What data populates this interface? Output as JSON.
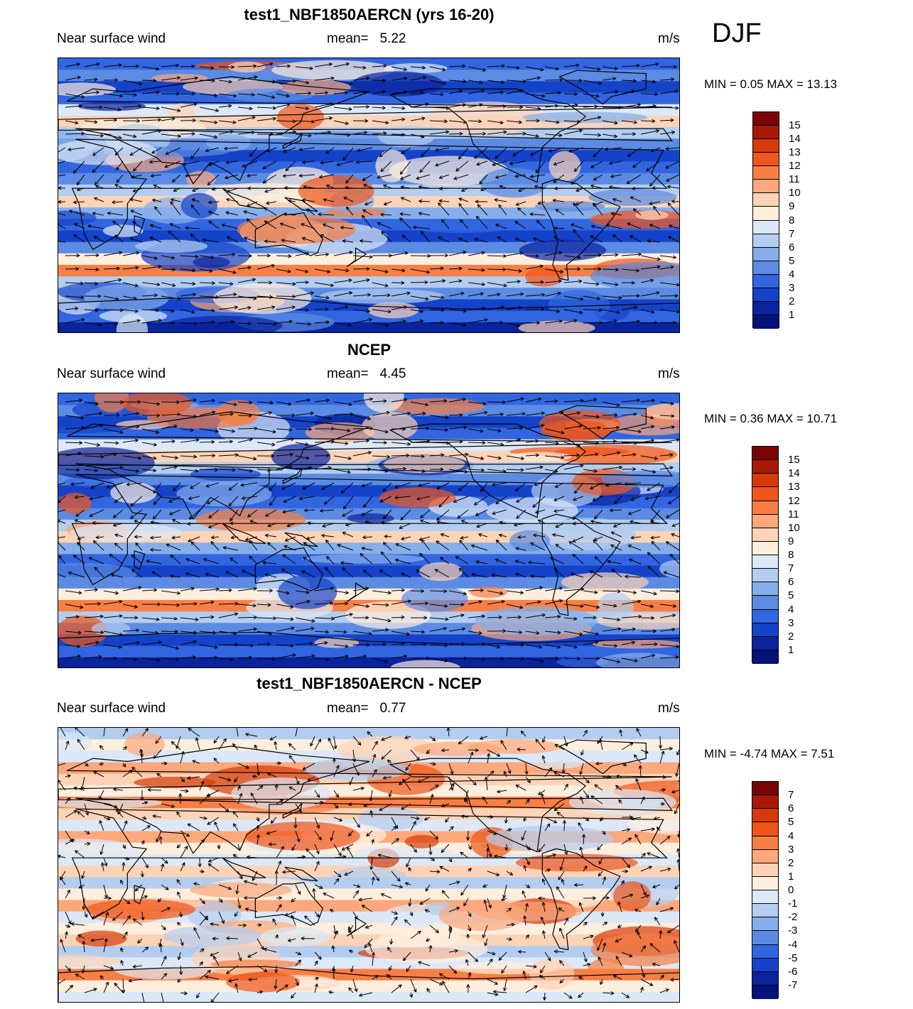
{
  "season": "DJF",
  "units": "m/s",
  "field_label": "Near surface wind",
  "mean_prefix": "mean=",
  "panels": [
    {
      "title": "test1_NBF1850AERCN (yrs 16-20)",
      "mean": "5.22",
      "minmax": "MIN =   0.05 MAX =  13.13",
      "palette": "speed",
      "colorbar_labels": [
        "15",
        "14",
        "13",
        "12",
        "11",
        "10",
        "9",
        "8",
        "7",
        "6",
        "5",
        "4",
        "3",
        "2",
        "1"
      ]
    },
    {
      "title": "NCEP",
      "mean": "4.45",
      "minmax": "MIN =   0.36 MAX =  10.71",
      "palette": "speed",
      "colorbar_labels": [
        "15",
        "14",
        "13",
        "12",
        "11",
        "10",
        "9",
        "8",
        "7",
        "6",
        "5",
        "4",
        "3",
        "2",
        "1"
      ]
    },
    {
      "title": "test1_NBF1850AERCN - NCEP",
      "mean": "0.77",
      "minmax": "MIN =  -4.74 MAX =   7.51",
      "palette": "diff",
      "colorbar_labels": [
        "7",
        "6",
        "5",
        "4",
        "3",
        "2",
        "1",
        "0",
        "-1",
        "-2",
        "-3",
        "-4",
        "-5",
        "-6",
        "-7"
      ]
    }
  ],
  "colors": {
    "speed": [
      "#7a0403",
      "#a81a05",
      "#d53a08",
      "#f0561a",
      "#f77f45",
      "#fba87c",
      "#fcd3b6",
      "#fdeedd",
      "#dce8f7",
      "#b3cdf0",
      "#86aeea",
      "#5b8be3",
      "#3266e0",
      "#1443c9",
      "#0a249e",
      "#05127a"
    ],
    "diff": [
      "#7a0403",
      "#a81a05",
      "#d53a08",
      "#f0561a",
      "#f77f45",
      "#fba87c",
      "#fcd3b6",
      "#fdeedd",
      "#dce8f7",
      "#b3cdf0",
      "#86aeea",
      "#5b8be3",
      "#3266e0",
      "#1443c9",
      "#0a249e",
      "#05127a"
    ]
  }
}
